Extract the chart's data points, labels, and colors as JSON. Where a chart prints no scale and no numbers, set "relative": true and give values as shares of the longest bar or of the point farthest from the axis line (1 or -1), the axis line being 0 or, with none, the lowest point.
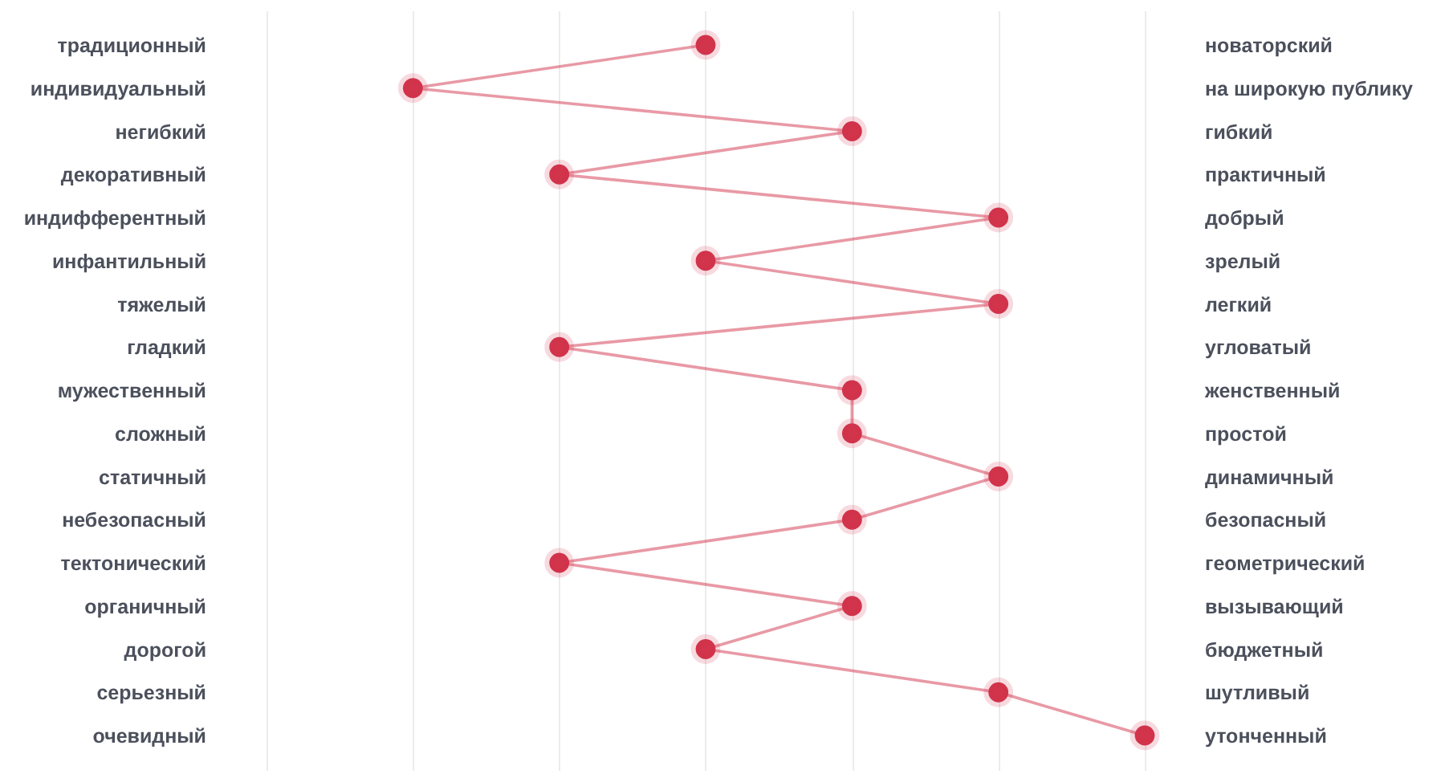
{
  "chart_data": {
    "type": "line",
    "orientation": "horizontal",
    "relative": true,
    "grid": "x",
    "marker": "circle",
    "categories": [
      "традиционный",
      "индивидуальный",
      "негибкий",
      "декоративный",
      "индифферентный",
      "инфантильный",
      "тяжелый",
      "гладкий",
      "мужественный",
      "сложный",
      "статичный",
      "небезопасный",
      "тектонический",
      "органичный",
      "дорогой",
      "серьезный",
      "очевидный"
    ],
    "y2_categories": [
      "новаторский",
      "на широкую публику",
      "гибкий",
      "практичный",
      "добрый",
      "зрелый",
      "легкий",
      "угловатый",
      "женственный",
      "простой",
      "динамичный",
      "безопасный",
      "геометрический",
      "вызывающий",
      "бюджетный",
      "шутливый",
      "утонченный"
    ],
    "series": [
      {
        "color": "#d1344b",
        "values": [
          0.4,
          0,
          0.6,
          0.2,
          0.8,
          0.4,
          0.8,
          0.2,
          0.6,
          0.6,
          0.8,
          0.6,
          0.2,
          0.6,
          0.4,
          0.8,
          1
        ]
      }
    ]
  }
}
